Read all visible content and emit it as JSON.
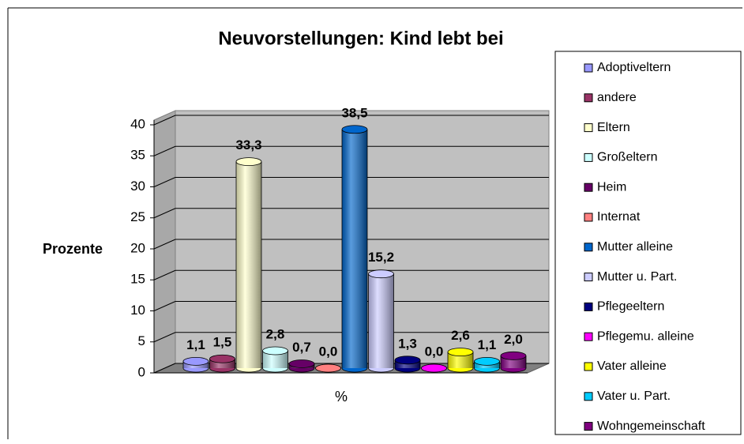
{
  "chart_data": {
    "type": "bar3d",
    "title": "Neuvorstellungen: Kind lebt bei",
    "y_label": "Prozente",
    "categories": [
      "%"
    ],
    "series": [
      {
        "name": "Adoptiveltern",
        "color": "#9999ff",
        "values": [
          1.1
        ],
        "value_labels": [
          "1,1"
        ]
      },
      {
        "name": "andere",
        "color": "#993366",
        "values": [
          1.5
        ],
        "value_labels": [
          "1,5"
        ]
      },
      {
        "name": "Eltern",
        "color": "#ffffcc",
        "values": [
          33.3
        ],
        "value_labels": [
          "33,3"
        ]
      },
      {
        "name": "Großeltern",
        "color": "#ccffff",
        "values": [
          2.8
        ],
        "value_labels": [
          "2,8"
        ]
      },
      {
        "name": "Heim",
        "color": "#660066",
        "values": [
          0.7
        ],
        "value_labels": [
          "0,7"
        ]
      },
      {
        "name": "Internat",
        "color": "#ff8080",
        "values": [
          0.0
        ],
        "value_labels": [
          "0,0"
        ]
      },
      {
        "name": "Mutter alleine",
        "color": "#0066cc",
        "values": [
          38.5
        ],
        "value_labels": [
          "38,5"
        ]
      },
      {
        "name": "Mutter u. Part.",
        "color": "#ccccff",
        "values": [
          15.2
        ],
        "value_labels": [
          "15,2"
        ]
      },
      {
        "name": "Pflegeeltern",
        "color": "#000080",
        "values": [
          1.3
        ],
        "value_labels": [
          "1,3"
        ]
      },
      {
        "name": "Pflegemu. alleine",
        "color": "#ff00ff",
        "values": [
          0.0
        ],
        "value_labels": [
          "0,0"
        ]
      },
      {
        "name": "Vater alleine",
        "color": "#ffff00",
        "values": [
          2.6
        ],
        "value_labels": [
          "2,6"
        ]
      },
      {
        "name": "Vater u. Part.",
        "color": "#00ccff",
        "values": [
          1.1
        ],
        "value_labels": [
          "1,1"
        ]
      },
      {
        "name": "Wohngemeinschaft",
        "color": "#800080",
        "values": [
          2.0
        ],
        "value_labels": [
          "2,0"
        ]
      }
    ],
    "ylim": [
      0,
      40
    ],
    "yticks": [
      0,
      5,
      10,
      15,
      20,
      25,
      30,
      35,
      40
    ],
    "grid": true,
    "legend": "right"
  }
}
